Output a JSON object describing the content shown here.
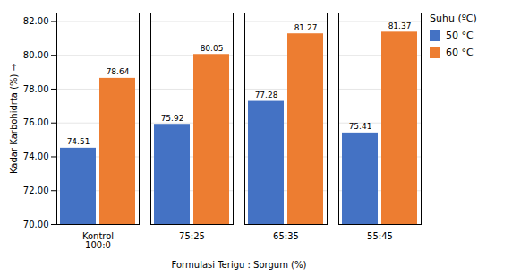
{
  "chart_data": {
    "type": "bar",
    "xlabel": "Formulasi Terigu : Sorgum (%)",
    "ylabel": "Kadar Karbohidrta (%)",
    "legend_title": "Suhu (ºC)",
    "categories": [
      "Kontrol\n100:0",
      "75:25",
      "65:35",
      "55:45"
    ],
    "series": [
      {
        "name": "50 °C",
        "color": "#4472C4",
        "values": [
          74.51,
          75.92,
          77.28,
          75.41
        ]
      },
      {
        "name": "60 °C",
        "color": "#ED7D31",
        "values": [
          78.64,
          80.05,
          81.27,
          81.37
        ]
      }
    ],
    "ylim": [
      70,
      82.5
    ],
    "yticks": [
      {
        "value": 70,
        "label": "70.00"
      },
      {
        "value": 72,
        "label": "72.00"
      },
      {
        "value": 74,
        "label": "74.00"
      },
      {
        "value": 76,
        "label": "76.00"
      },
      {
        "value": 78,
        "label": "78.00"
      },
      {
        "value": 80,
        "label": "80.00"
      },
      {
        "value": 82,
        "label": "82.00"
      }
    ],
    "grid": true,
    "legend": "right",
    "data_labels": true
  }
}
